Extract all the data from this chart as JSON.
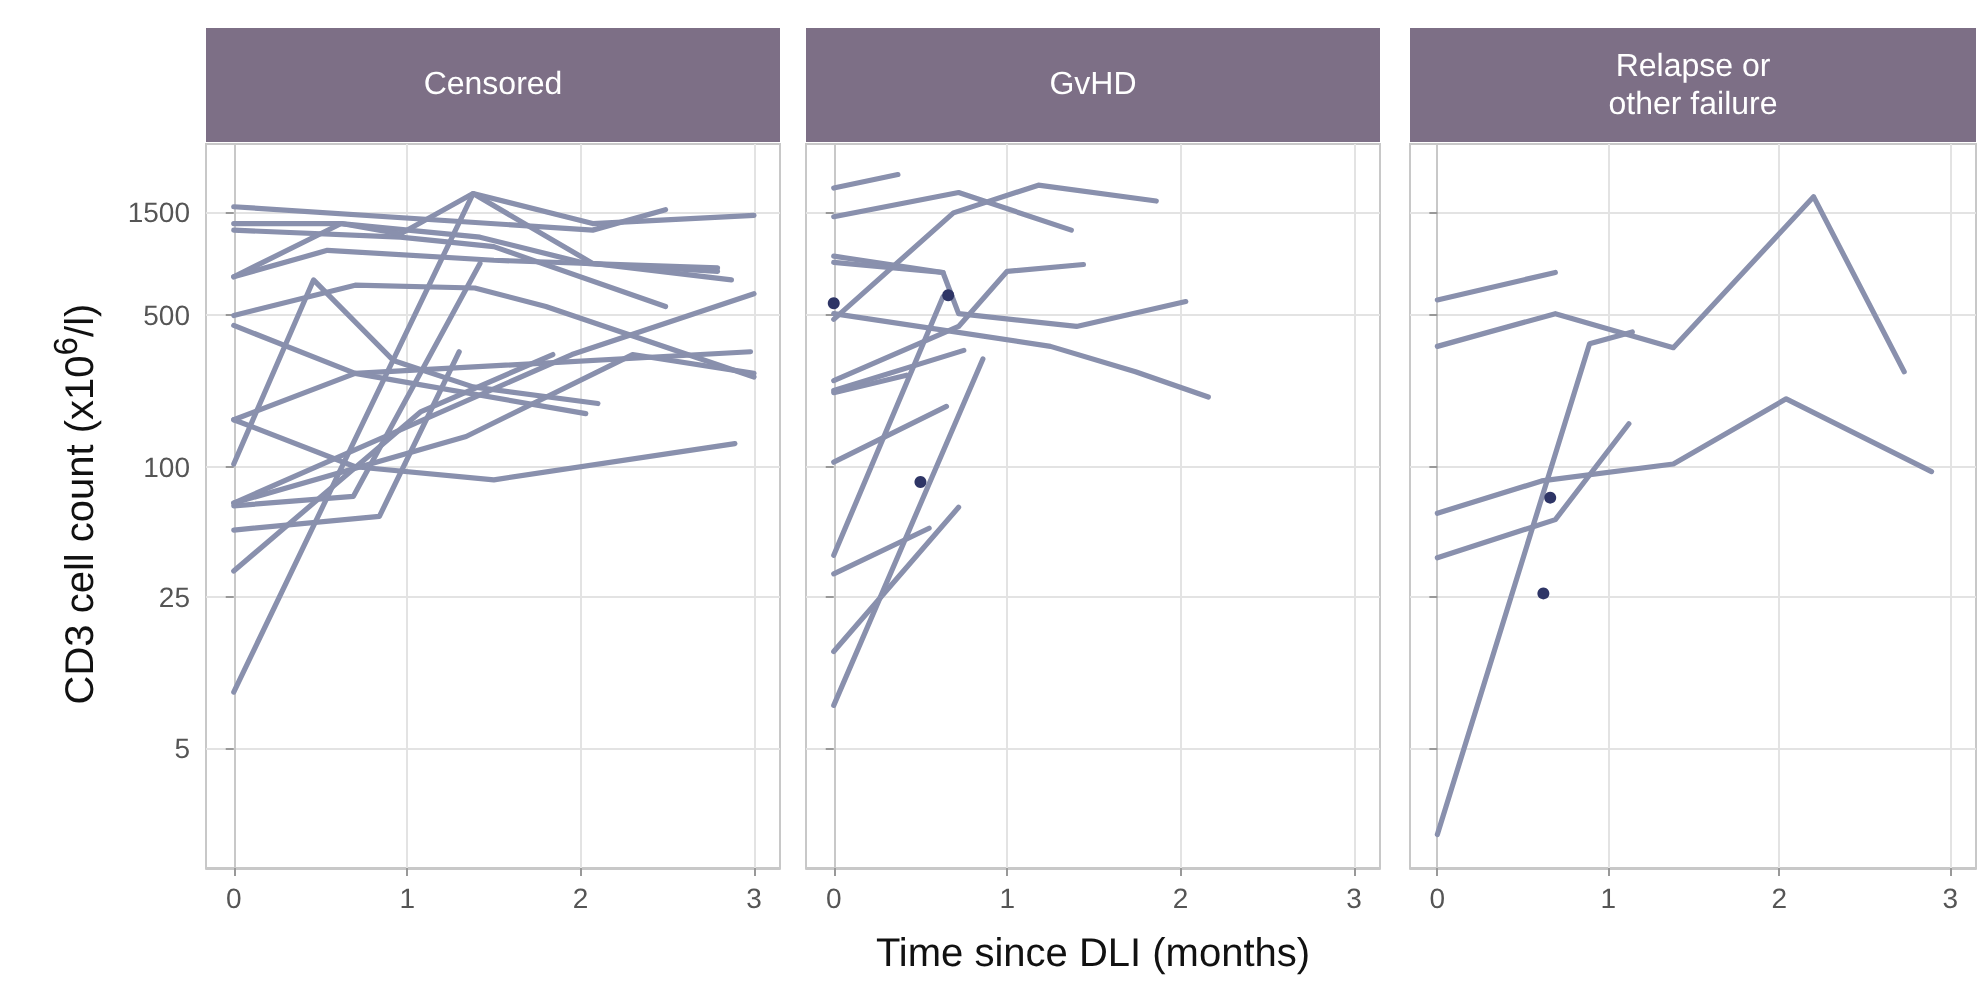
{
  "chart_data": [
    {
      "type": "line",
      "title": "Censored",
      "ylabel": "CD3 cell count (x10$^{6}$/l)",
      "log": "y",
      "grid": true,
      "xlim": [
        -0.16,
        3.15
      ],
      "xticks": [
        0,
        1,
        2,
        3
      ],
      "ylim": [
        1.4,
        3100
      ],
      "yticks": [
        5,
        25,
        100,
        500,
        1500
      ],
      "series": [
        {
          "color": "#8990ad",
          "x": [
            0,
            2.07,
            2.49
          ],
          "values": [
            1590,
            1240,
            1540
          ]
        },
        {
          "color": "#8990ad",
          "x": [
            0,
            0.62,
            1.42,
            2.03,
            2.79
          ],
          "values": [
            1330,
            1330,
            1150,
            870,
            800
          ]
        },
        {
          "color": "#8990ad",
          "x": [
            0,
            0.96,
            1.5,
            2.49
          ],
          "values": [
            1240,
            1150,
            1040,
            550
          ]
        },
        {
          "color": "#8990ad",
          "x": [
            0,
            0.62,
            0.96,
            1.38,
            2.07,
            2.87
          ],
          "values": [
            755,
            1330,
            1190,
            1830,
            870,
            730
          ]
        },
        {
          "color": "#8990ad",
          "x": [
            0,
            0.54,
            1.5,
            2.79
          ],
          "values": [
            755,
            1000,
            900,
            830
          ]
        },
        {
          "color": "#8990ad",
          "x": [
            0,
            0.69,
            1.42
          ],
          "values": [
            66,
            73,
            870
          ]
        },
        {
          "color": "#8990ad",
          "x": [
            0,
            0.84,
            1.3
          ],
          "values": [
            51,
            59,
            340
          ]
        },
        {
          "color": "#8990ad",
          "x": [
            0,
            0.7,
            1.39,
            1.8,
            3.0
          ],
          "values": [
            500,
            690,
            670,
            550,
            260
          ]
        },
        {
          "color": "#8990ad",
          "x": [
            0,
            0.7,
            2.03
          ],
          "values": [
            450,
            270,
            176
          ]
        },
        {
          "color": "#8990ad",
          "x": [
            0,
            0.46,
            0.92,
            1.38,
            2.1
          ],
          "values": [
            103,
            730,
            310,
            234,
            196
          ]
        },
        {
          "color": "#8990ad",
          "x": [
            0,
            0.7,
            2.98
          ],
          "values": [
            165,
            270,
            340
          ]
        },
        {
          "color": "#8990ad",
          "x": [
            0,
            0.7,
            1.5,
            2.89
          ],
          "values": [
            165,
            100,
            87,
            128
          ]
        },
        {
          "color": "#8990ad",
          "x": [
            0,
            1.34,
            2.3,
            3.0
          ],
          "values": [
            68,
            138,
            330,
            270
          ]
        },
        {
          "color": "#8990ad",
          "x": [
            0,
            1.95,
            3.0
          ],
          "values": [
            68,
            330,
            630
          ]
        },
        {
          "color": "#8990ad",
          "x": [
            0,
            1.08,
            1.84
          ],
          "values": [
            33,
            180,
            330
          ]
        },
        {
          "color": "#8990ad",
          "x": [
            0,
            1.38,
            2.07,
            3.0
          ],
          "values": [
            9.1,
            1830,
            1330,
            1450
          ]
        }
      ]
    },
    {
      "type": "line",
      "title": "GvHD",
      "xlabel": "Time since DLI (months)",
      "log": "y",
      "grid": true,
      "tick_labels": "x",
      "xlim": [
        -0.16,
        3.15
      ],
      "xticks": [
        0,
        1,
        2,
        3
      ],
      "ylim": [
        1.4,
        3100
      ],
      "yticks": [
        5,
        25,
        100,
        500,
        1500
      ],
      "series": [
        {
          "color": "#8990ad",
          "x": [
            0,
            0.37
          ],
          "values": [
            1940,
            2240
          ]
        },
        {
          "color": "#8990ad",
          "x": [
            0,
            0.72,
            1.37
          ],
          "values": [
            1430,
            1850,
            1240
          ]
        },
        {
          "color": "#8990ad",
          "x": [
            0,
            0.69,
            1.18,
            1.86
          ],
          "values": [
            480,
            1490,
            2000,
            1690
          ]
        },
        {
          "color": "#8990ad",
          "x": [
            0,
            0.63,
            0.72,
            1.4,
            2.03
          ],
          "values": [
            940,
            790,
            510,
            445,
            580
          ]
        },
        {
          "color": "#8990ad",
          "x": [
            0,
            0.63
          ],
          "values": [
            880,
            790
          ]
        },
        {
          "color": "#8990ad",
          "x": [
            0,
            1.25,
            1.74,
            2.16
          ],
          "values": [
            510,
            360,
            275,
            210
          ]
        },
        {
          "color": "#8990ad",
          "x": [
            0,
            0.72,
            1.0,
            1.44
          ],
          "values": [
            250,
            445,
            800,
            860
          ]
        },
        {
          "color": "#8990ad",
          "x": [
            0,
            0.75
          ],
          "values": [
            225,
            345
          ]
        },
        {
          "color": "#8990ad",
          "x": [
            0,
            0.42
          ],
          "values": [
            220,
            265
          ]
        },
        {
          "color": "#8990ad",
          "x": [
            0,
            0.65
          ],
          "values": [
            105,
            190
          ]
        },
        {
          "color": "#8990ad",
          "x": [
            0,
            0.63
          ],
          "values": [
            39,
            610
          ]
        },
        {
          "color": "#8990ad",
          "x": [
            0,
            0.55
          ],
          "values": [
            32,
            52
          ]
        },
        {
          "color": "#8990ad",
          "x": [
            0,
            0.72
          ],
          "values": [
            14,
            65
          ]
        },
        {
          "color": "#8990ad",
          "x": [
            0,
            0.86
          ],
          "values": [
            7.9,
            315
          ]
        },
        {
          "type": "scatter",
          "marker": "circle",
          "color": "#2e3566",
          "x": [
            0,
            0.66,
            0.5
          ],
          "values": [
            570,
            620,
            85
          ]
        }
      ]
    },
    {
      "type": "line",
      "title": "Relapse or\nother failure",
      "log": "y",
      "grid": true,
      "tick_labels": "x",
      "xlim": [
        -0.16,
        3.15
      ],
      "xticks": [
        0,
        1,
        2,
        3
      ],
      "ylim": [
        1.4,
        3100
      ],
      "yticks": [
        5,
        25,
        100,
        500,
        1500
      ],
      "series": [
        {
          "color": "#8990ad",
          "x": [
            0,
            0.69
          ],
          "values": [
            590,
            790
          ]
        },
        {
          "color": "#8990ad",
          "x": [
            0,
            0.69,
            1.38,
            2.2,
            2.73
          ],
          "values": [
            360,
            510,
            355,
            1770,
            275
          ]
        },
        {
          "color": "#8990ad",
          "x": [
            0,
            0.89,
            1.14
          ],
          "values": [
            2.0,
            370,
            420
          ]
        },
        {
          "color": "#8990ad",
          "x": [
            0,
            0.61,
            1.38,
            2.04,
            2.89
          ],
          "values": [
            61,
            86,
            103,
            206,
            95
          ]
        },
        {
          "color": "#8990ad",
          "x": [
            0,
            0.69,
            1.12
          ],
          "values": [
            38,
            57,
            158
          ]
        },
        {
          "type": "scatter",
          "marker": "circle",
          "color": "#2e3566",
          "x": [
            0.66,
            0.62
          ],
          "values": [
            72,
            26
          ]
        }
      ]
    }
  ]
}
